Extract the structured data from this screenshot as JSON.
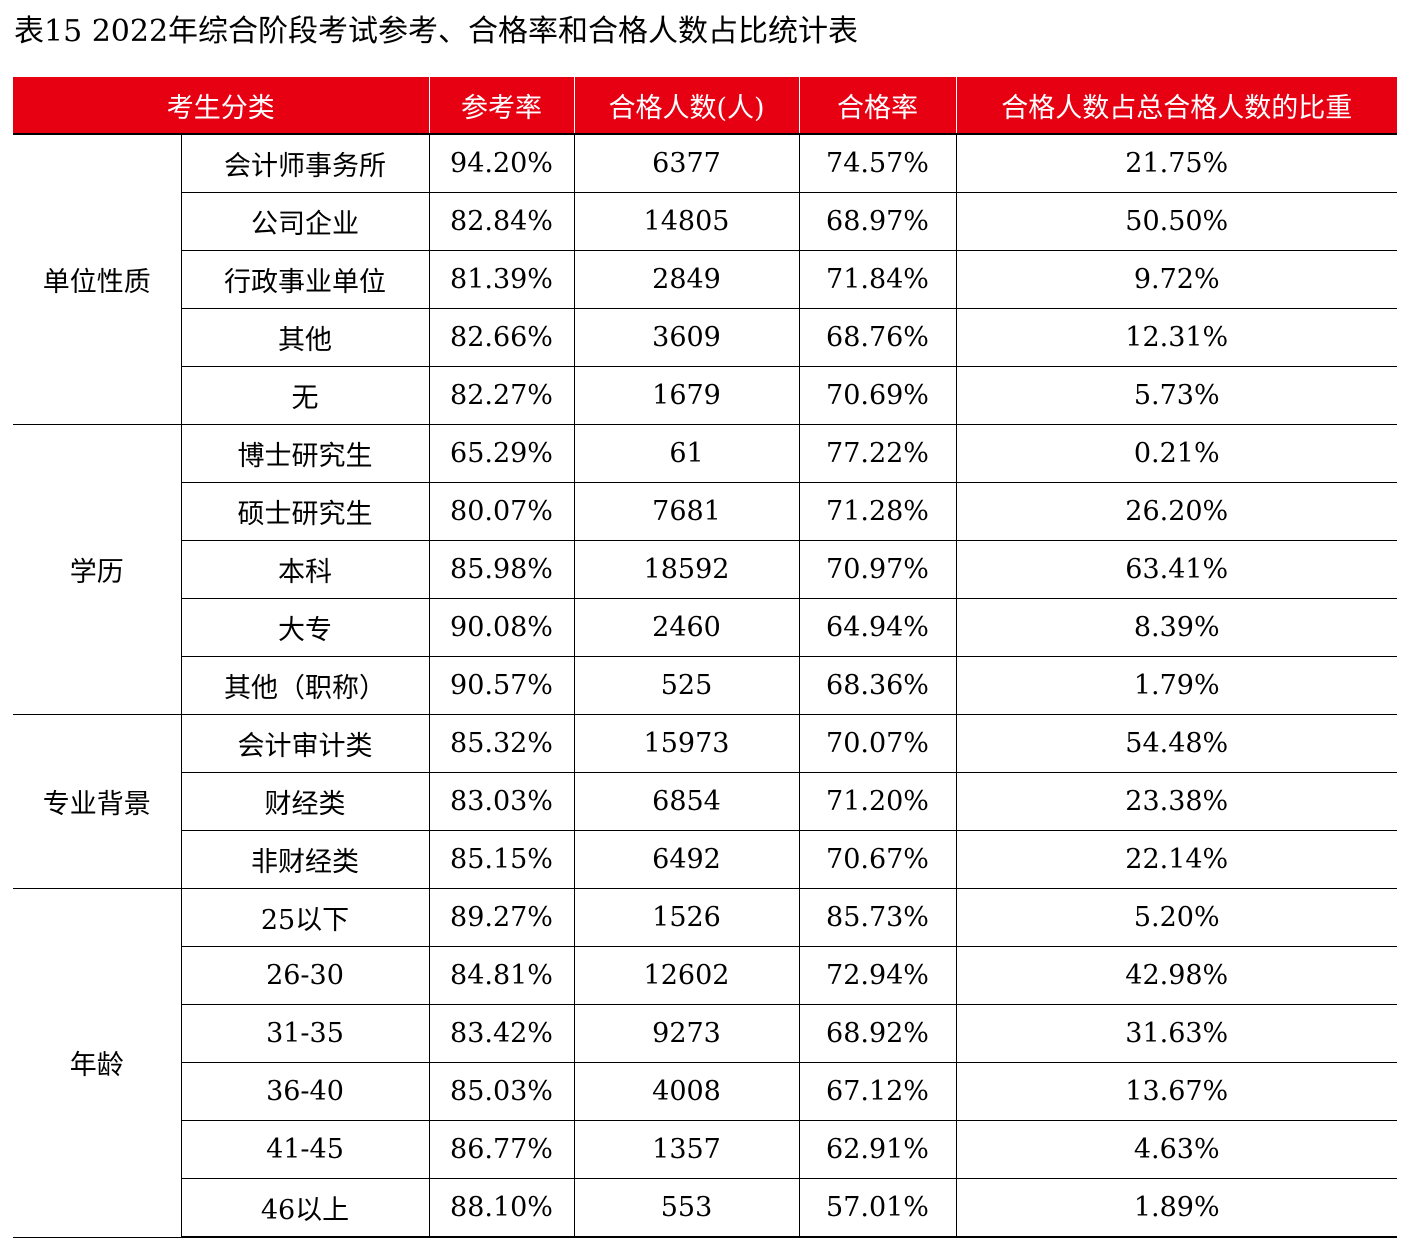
{
  "title": "表15  2022年综合阶段考试参考、合格率和合格人数占比统计表",
  "colors": {
    "header_bg": "#e60012",
    "header_text": "#ffffff",
    "grid": "#000000"
  },
  "columns": [
    "考生分类",
    "参考率",
    "合格人数(人)",
    "合格率",
    "合格人数占总合格人数的比重"
  ],
  "groups": [
    {
      "name": "单位性质",
      "rows": [
        {
          "sub": "会计师事务所",
          "rate": "94.20%",
          "count": "6377",
          "pass": "74.57%",
          "share": "21.75%"
        },
        {
          "sub": "公司企业",
          "rate": "82.84%",
          "count": "14805",
          "pass": "68.97%",
          "share": "50.50%"
        },
        {
          "sub": "行政事业单位",
          "rate": "81.39%",
          "count": "2849",
          "pass": "71.84%",
          "share": "9.72%"
        },
        {
          "sub": "其他",
          "rate": "82.66%",
          "count": "3609",
          "pass": "68.76%",
          "share": "12.31%"
        },
        {
          "sub": "无",
          "rate": "82.27%",
          "count": "1679",
          "pass": "70.69%",
          "share": "5.73%"
        }
      ]
    },
    {
      "name": "学历",
      "rows": [
        {
          "sub": "博士研究生",
          "rate": "65.29%",
          "count": "61",
          "pass": "77.22%",
          "share": "0.21%"
        },
        {
          "sub": "硕士研究生",
          "rate": "80.07%",
          "count": "7681",
          "pass": "71.28%",
          "share": "26.20%"
        },
        {
          "sub": "本科",
          "rate": "85.98%",
          "count": "18592",
          "pass": "70.97%",
          "share": "63.41%"
        },
        {
          "sub": "大专",
          "rate": "90.08%",
          "count": "2460",
          "pass": "64.94%",
          "share": "8.39%"
        },
        {
          "sub": "其他（职称）",
          "rate": "90.57%",
          "count": "525",
          "pass": "68.36%",
          "share": "1.79%"
        }
      ]
    },
    {
      "name": "专业背景",
      "rows": [
        {
          "sub": "会计审计类",
          "rate": "85.32%",
          "count": "15973",
          "pass": "70.07%",
          "share": "54.48%"
        },
        {
          "sub": "财经类",
          "rate": "83.03%",
          "count": "6854",
          "pass": "71.20%",
          "share": "23.38%"
        },
        {
          "sub": "非财经类",
          "rate": "85.15%",
          "count": "6492",
          "pass": "70.67%",
          "share": "22.14%"
        }
      ]
    },
    {
      "name": "年龄",
      "rows": [
        {
          "sub": "25以下",
          "rate": "89.27%",
          "count": "1526",
          "pass": "85.73%",
          "share": "5.20%"
        },
        {
          "sub": "26-30",
          "rate": "84.81%",
          "count": "12602",
          "pass": "72.94%",
          "share": "42.98%"
        },
        {
          "sub": "31-35",
          "rate": "83.42%",
          "count": "9273",
          "pass": "68.92%",
          "share": "31.63%"
        },
        {
          "sub": "36-40",
          "rate": "85.03%",
          "count": "4008",
          "pass": "67.12%",
          "share": "13.67%"
        },
        {
          "sub": "41-45",
          "rate": "86.77%",
          "count": "1357",
          "pass": "62.91%",
          "share": "4.63%"
        },
        {
          "sub": "46以上",
          "rate": "88.10%",
          "count": "553",
          "pass": "57.01%",
          "share": "1.89%"
        }
      ]
    }
  ]
}
